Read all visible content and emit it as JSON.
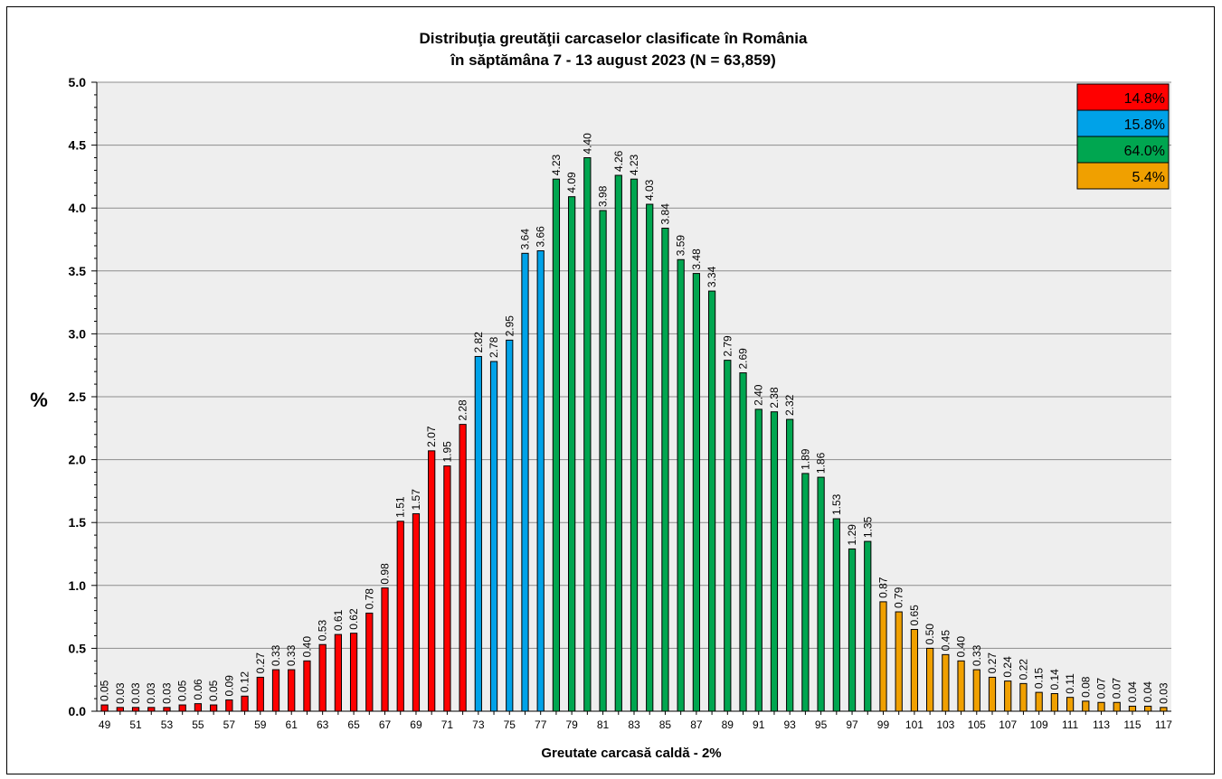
{
  "chart_data": {
    "type": "bar",
    "title": "Distribuţia greutăţii carcaselor clasificate în România",
    "subtitle": "în săptămâna 7 - 13 august  2023 (N = 63,859)",
    "xlabel": "Greutate carcasă caldă - 2%",
    "ylabel": "%",
    "ylim": [
      0,
      5.0
    ],
    "yticks": [
      "0.0",
      "0.5",
      "1.0",
      "1.5",
      "2.0",
      "2.5",
      "3.0",
      "3.5",
      "4.0",
      "4.5",
      "5.0"
    ],
    "grid": true,
    "categories": [
      49,
      50,
      51,
      52,
      53,
      54,
      55,
      56,
      57,
      58,
      59,
      60,
      61,
      62,
      63,
      64,
      65,
      66,
      67,
      68,
      69,
      70,
      71,
      72,
      73,
      74,
      75,
      76,
      77,
      78,
      79,
      80,
      81,
      82,
      83,
      84,
      85,
      86,
      87,
      88,
      89,
      90,
      91,
      92,
      93,
      94,
      95,
      96,
      97,
      98,
      99,
      100,
      101,
      102,
      103,
      104,
      105,
      106,
      107,
      108,
      109,
      110,
      111,
      112,
      113,
      114,
      115,
      116,
      117
    ],
    "values": [
      0.05,
      0.03,
      0.03,
      0.03,
      0.03,
      0.05,
      0.06,
      0.05,
      0.09,
      0.12,
      0.27,
      0.33,
      0.33,
      0.4,
      0.53,
      0.61,
      0.62,
      0.78,
      0.98,
      1.51,
      1.57,
      2.07,
      1.95,
      2.28,
      2.82,
      2.78,
      2.95,
      3.64,
      3.66,
      4.23,
      4.09,
      4.4,
      3.98,
      4.26,
      4.23,
      4.03,
      3.84,
      3.59,
      3.48,
      3.34,
      2.79,
      2.69,
      2.4,
      2.38,
      2.32,
      1.89,
      1.86,
      1.53,
      1.29,
      1.35,
      0.87,
      0.79,
      0.65,
      0.5,
      0.45,
      0.4,
      0.33,
      0.27,
      0.24,
      0.22,
      0.15,
      0.14,
      0.11,
      0.08,
      0.07,
      0.07,
      0.04,
      0.04,
      0.03
    ],
    "value_labels": [
      "0.05",
      "0.03",
      "0.03",
      "0.03",
      "0.03",
      "0.05",
      "0.06",
      "0.05",
      "0.09",
      "0.12",
      "0.27",
      "0.33",
      "0.33",
      "0.40",
      "0.53",
      "0.61",
      "0.62",
      "0.78",
      "0.98",
      "1.51",
      "1.57",
      "2.07",
      "1.95",
      "2.28",
      "2.82",
      "2.78",
      "2.95",
      "3.64",
      "3.66",
      "4.23",
      "4.09",
      "4.40",
      "3.98",
      "4.26",
      "4.23",
      "4.03",
      "3.84",
      "3.59",
      "3.48",
      "3.34",
      "2.79",
      "2.69",
      "2.40",
      "2.38",
      "2.32",
      "1.89",
      "1.86",
      "1.53",
      "1.29",
      "1.35",
      "0.87",
      "0.79",
      "0.65",
      "0.50",
      "0.45",
      "0.40",
      "0.33",
      "0.27",
      "0.24",
      "0.22",
      "0.15",
      "0.14",
      "0.11",
      "0.08",
      "0.07",
      "0.07",
      "0.04",
      "0.04",
      "0.03"
    ],
    "color_groups": [
      {
        "from": 49,
        "to": 72,
        "color": "#ff0000",
        "legend": "14.8%"
      },
      {
        "from": 73,
        "to": 77,
        "color": "#00a2e8",
        "legend": "15.8%"
      },
      {
        "from": 78,
        "to": 98,
        "color": "#00a650",
        "legend": "64.0%"
      },
      {
        "from": 99,
        "to": 117,
        "color": "#f0a000",
        "legend": "5.4%"
      }
    ],
    "legend_position": "top-right"
  }
}
